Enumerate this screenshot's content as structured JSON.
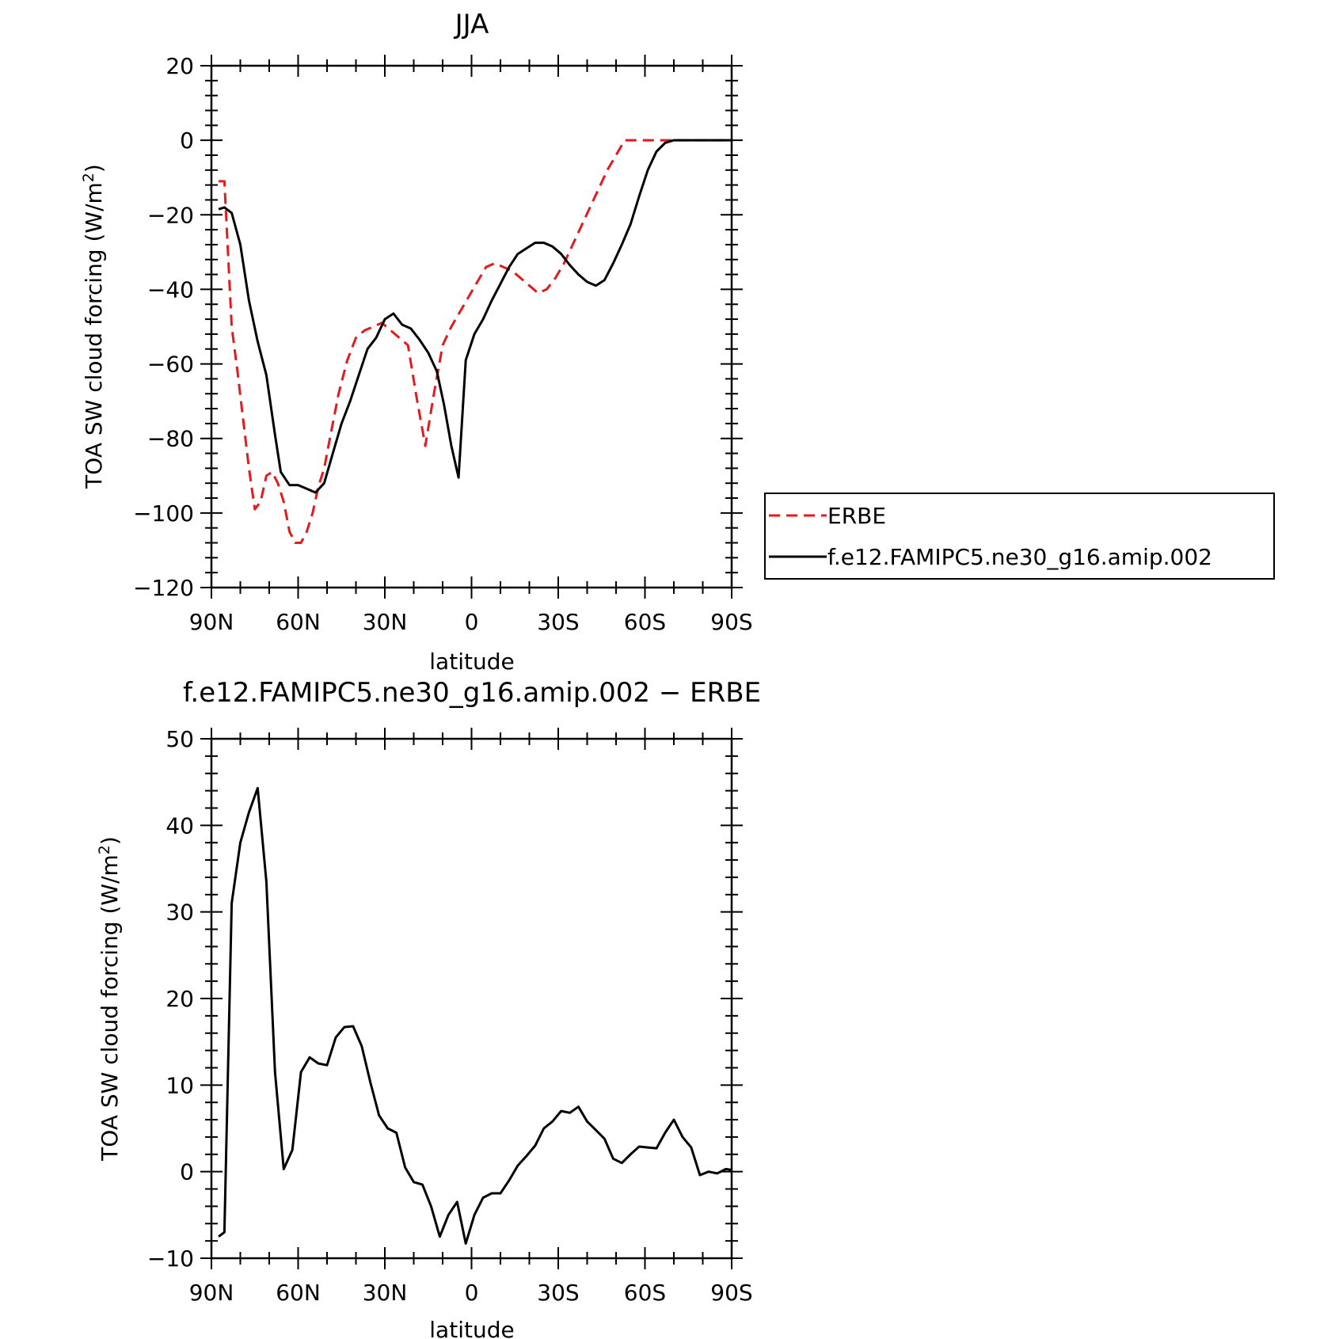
{
  "chart_data": [
    {
      "type": "line",
      "title": "JJA",
      "xlabel": "latitude",
      "ylabel": "TOA SW cloud forcing (W/m",
      "ylabel_sup": "2",
      "ylabel_close": ")",
      "xlim": [
        -90,
        90
      ],
      "x_direction": "north-to-south",
      "ylim": [
        -120,
        20
      ],
      "x_ticks": [
        -90,
        -60,
        -30,
        0,
        30,
        60,
        90
      ],
      "x_tick_labels": [
        "90N",
        "60N",
        "30N",
        "0",
        "30S",
        "60S",
        "90S"
      ],
      "y_ticks": [
        -120,
        -100,
        -80,
        -60,
        -40,
        -20,
        0,
        20
      ],
      "y_tick_labels": [
        "−120",
        "−100",
        "−80",
        "−60",
        "−40",
        "−20",
        "0",
        "20"
      ],
      "legend_position": "right",
      "series": [
        {
          "name": "ERBE",
          "color": "#e41a1c",
          "style": "dashed",
          "x": [
            -87.5,
            -85.5,
            -83,
            -81,
            -79,
            -77,
            -75,
            -73,
            -71,
            -69,
            -67,
            -65,
            -63,
            -61,
            -59,
            -57,
            -55,
            -53,
            -51,
            -49,
            -46,
            -43,
            -40,
            -37,
            -34,
            -31,
            -28,
            -25,
            -22,
            -19,
            -16,
            -13,
            -10,
            -7,
            -4,
            -1,
            2,
            5,
            8,
            11,
            14,
            17,
            20,
            23,
            26,
            29,
            32,
            35,
            38,
            41,
            44,
            47,
            50,
            53,
            56,
            59,
            62,
            65,
            68,
            71,
            74,
            77,
            80,
            83,
            86,
            89
          ],
          "y": [
            -11,
            -11,
            -50,
            -62,
            -75,
            -88,
            -99,
            -97,
            -90,
            -89,
            -92,
            -97,
            -105,
            -108,
            -108,
            -105,
            -100,
            -93,
            -88,
            -80,
            -68,
            -59,
            -53,
            -51,
            -50,
            -49,
            -51,
            -53,
            -55,
            -69,
            -82,
            -68,
            -55,
            -50,
            -46,
            -42,
            -38,
            -34,
            -33,
            -34,
            -35,
            -37,
            -39,
            -41,
            -40,
            -37,
            -33,
            -28,
            -23,
            -18,
            -13,
            -8,
            -4,
            0,
            0,
            0,
            0,
            0,
            0,
            0,
            0,
            0,
            0,
            0,
            0,
            0
          ]
        },
        {
          "name": "f.e12.FAMIPC5.ne30_g16.amip.002",
          "color": "#000000",
          "style": "solid",
          "x": [
            -87.5,
            -85.5,
            -83,
            -80,
            -77,
            -74,
            -71,
            -68,
            -66,
            -63,
            -60,
            -57,
            -54,
            -51,
            -48,
            -45,
            -42,
            -39,
            -36,
            -33,
            -30,
            -27,
            -24,
            -21,
            -18,
            -15,
            -12,
            -9.5,
            -7,
            -4.5,
            -2,
            1,
            4,
            7,
            10,
            13,
            16,
            19,
            22,
            25,
            28,
            31,
            34,
            37,
            40,
            43,
            46,
            49,
            52,
            55,
            58,
            61,
            64,
            67,
            70,
            73,
            76,
            79,
            82,
            85,
            88,
            90
          ],
          "y": [
            -18.5,
            -18,
            -19.5,
            -28,
            -43,
            -54,
            -63,
            -79,
            -89,
            -92.5,
            -92.5,
            -93.5,
            -94.5,
            -92,
            -84,
            -76,
            -70,
            -63,
            -56,
            -53,
            -48,
            -46.5,
            -49.5,
            -50.5,
            -53.5,
            -57,
            -62,
            -71,
            -82,
            -90.5,
            -59,
            -52,
            -48,
            -43,
            -38.5,
            -34,
            -30.5,
            -29,
            -27.5,
            -27.5,
            -28.5,
            -30.5,
            -33.5,
            -36,
            -38,
            -39,
            -37.5,
            -33,
            -28,
            -22.5,
            -15,
            -8,
            -3,
            -0.7,
            0,
            0,
            0,
            0,
            0,
            0,
            0,
            0
          ]
        }
      ]
    },
    {
      "type": "line",
      "title": "f.e12.FAMIPC5.ne30_g16.amip.002 − ERBE",
      "xlabel": "latitude",
      "ylabel": "TOA SW cloud forcing (W/m",
      "ylabel_sup": "2",
      "ylabel_close": ")",
      "xlim": [
        -90,
        90
      ],
      "x_direction": "north-to-south",
      "ylim": [
        -10,
        50
      ],
      "x_ticks": [
        -90,
        -60,
        -30,
        0,
        30,
        60,
        90
      ],
      "x_tick_labels": [
        "90N",
        "60N",
        "30N",
        "0",
        "30S",
        "60S",
        "90S"
      ],
      "y_ticks": [
        -10,
        0,
        10,
        20,
        30,
        40,
        50
      ],
      "y_tick_labels": [
        "−10",
        "0",
        "10",
        "20",
        "30",
        "40",
        "50"
      ],
      "series": [
        {
          "color": "#000000",
          "style": "solid",
          "x": [
            -87.5,
            -85.5,
            -83,
            -80,
            -77,
            -74,
            -71,
            -68,
            -65,
            -62,
            -59,
            -56,
            -53,
            -50,
            -47,
            -44,
            -41,
            -38,
            -35,
            -32,
            -29,
            -26,
            -23,
            -20,
            -17,
            -14,
            -11,
            -8,
            -5,
            -2,
            1,
            4,
            7,
            10,
            13,
            16,
            19,
            22,
            25,
            28,
            31,
            34,
            37,
            40,
            43,
            46,
            49,
            52,
            55,
            58,
            61,
            64,
            67,
            70,
            73,
            76,
            79,
            82,
            85,
            88,
            90
          ],
          "y": [
            -7.5,
            -7,
            31,
            38,
            41.5,
            44.3,
            33.5,
            11.5,
            0.3,
            2.5,
            11.5,
            13.2,
            12.5,
            12.3,
            15.5,
            16.7,
            16.8,
            14.5,
            10.3,
            6.5,
            5,
            4.5,
            0.5,
            -1.2,
            -1.5,
            -4,
            -7.5,
            -5,
            -3.5,
            -8.3,
            -5,
            -3,
            -2.5,
            -2.5,
            -1,
            0.7,
            1.8,
            3,
            5,
            5.8,
            7,
            6.8,
            7.5,
            5.8,
            4.8,
            3.8,
            1.5,
            1,
            2,
            2.9,
            2.8,
            2.7,
            4.5,
            6,
            4,
            2.8,
            -0.4,
            0,
            -0.2,
            0.3,
            0.2
          ]
        }
      ]
    }
  ]
}
